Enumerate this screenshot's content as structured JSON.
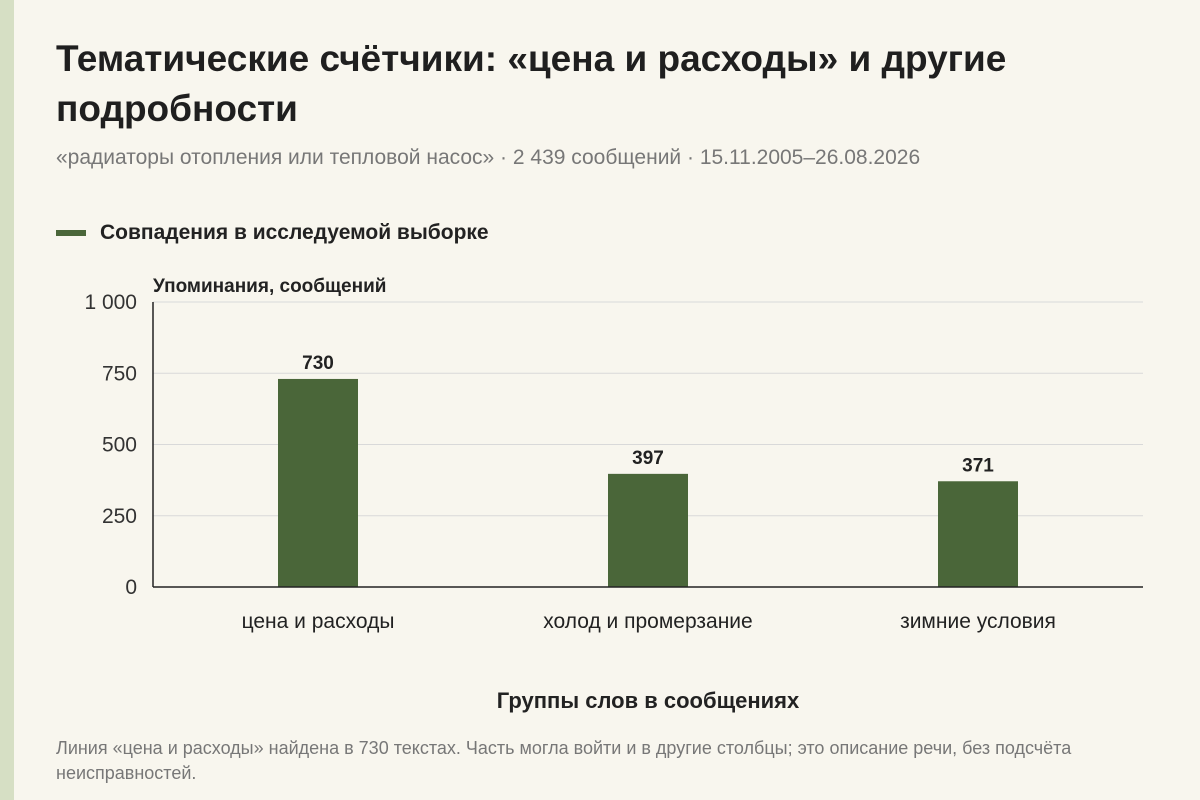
{
  "header": {
    "title": "Тематические счётчики: «цена и расходы» и другие подробности",
    "subtitle": "«радиаторы отопления или тепловой насос» · 2 439 сообщений · 15.11.2005–26.08.2026"
  },
  "footer": {
    "note": "Линия «цена и расходы» найдена в 730 текстах. Часть могла войти и в другие столбцы; это описание речи, без подсчёта неисправностей."
  },
  "colors": {
    "bar": "#4a6639",
    "background": "#f8f6ee",
    "accent_stripe": "#d6dfc4",
    "grid": "#d9d9d9"
  },
  "chart_data": {
    "type": "bar",
    "categories": [
      "цена и расходы",
      "холод и промерзание",
      "зимние условия"
    ],
    "series": [
      {
        "name": "Совпадения в исследуемой выборке",
        "values": [
          730,
          397,
          371
        ]
      }
    ],
    "data_labels": [
      "730",
      "397",
      "371"
    ],
    "title": "",
    "xlabel": "Группы слов в сообщениях",
    "ylabel": "Упоминания, сообщений",
    "ylim": [
      0,
      1000
    ],
    "yticks": [
      0,
      250,
      500,
      750,
      1000
    ],
    "ytick_labels": [
      "0",
      "250",
      "500",
      "750",
      "1 000"
    ],
    "grid": true,
    "legend_position": "top-left"
  }
}
